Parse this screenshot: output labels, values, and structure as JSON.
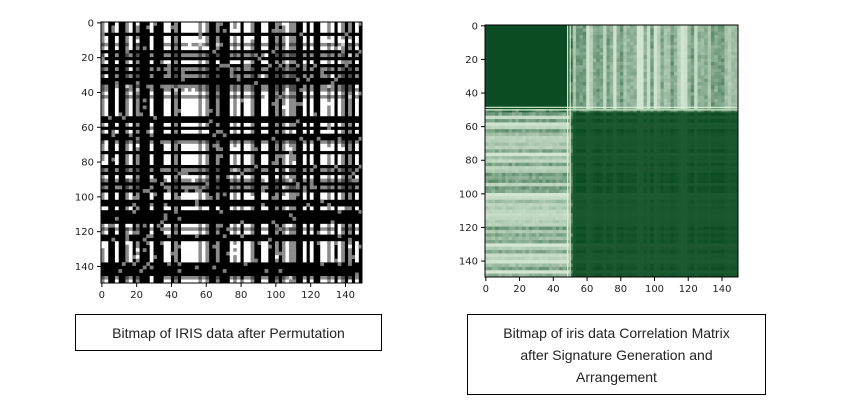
{
  "chart_data": [
    {
      "type": "heatmap",
      "title": "",
      "xlabel": "",
      "ylabel": "",
      "xlim": [
        0,
        149
      ],
      "ylim": [
        0,
        149
      ],
      "x_ticks": [
        0,
        20,
        40,
        60,
        80,
        100,
        120,
        140
      ],
      "y_ticks": [
        0,
        20,
        40,
        60,
        80,
        100,
        120,
        140
      ],
      "colormap": "gray",
      "colors": {
        "low": "#000000",
        "high": "#ffffff"
      },
      "grid": false
    },
    {
      "type": "heatmap",
      "title": "",
      "xlabel": "",
      "ylabel": "",
      "xlim": [
        0,
        149
      ],
      "ylim": [
        0,
        149
      ],
      "x_ticks": [
        0,
        20,
        40,
        60,
        80,
        100,
        120,
        140
      ],
      "y_ticks": [
        0,
        20,
        40,
        60,
        80,
        100,
        120,
        140
      ],
      "colormap": "Greens",
      "colors": {
        "low": "#e8f6e3",
        "high": "#00441b"
      },
      "block_boundaries": [
        49,
        51
      ],
      "grid": false
    }
  ],
  "captions": {
    "left": "Bitmap of IRIS data after Permutation",
    "right_lines": [
      "Bitmap of iris data Correlation Matrix",
      "after Signature Generation and",
      "Arrangement"
    ]
  }
}
